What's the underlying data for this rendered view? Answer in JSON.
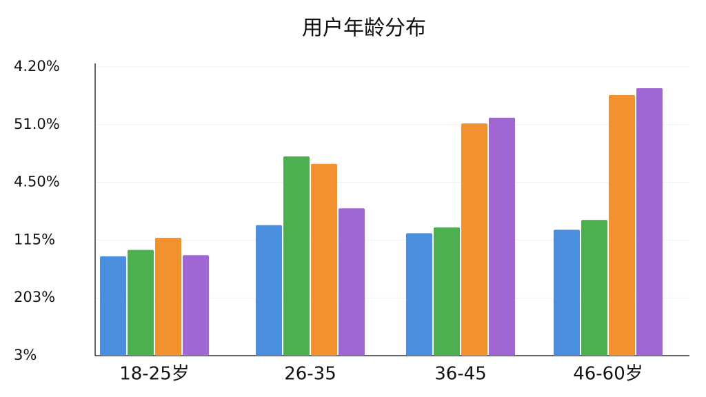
{
  "chart_data": {
    "type": "bar",
    "title": "用户年龄分布",
    "categories": [
      "18-25岁",
      "26-35",
      "36-45",
      "46-60岁"
    ],
    "series": [
      {
        "color": "#4a8ee0",
        "values": [
          1.72,
          2.26,
          2.12,
          2.18
        ]
      },
      {
        "color": "#4caf50",
        "values": [
          1.83,
          3.45,
          2.22,
          2.35
        ]
      },
      {
        "color": "#f2912e",
        "values": [
          2.04,
          3.32,
          4.02,
          4.51
        ]
      },
      {
        "color": "#a066d3",
        "values": [
          1.74,
          2.55,
          4.12,
          4.63
        ]
      }
    ],
    "ylim": [
      0,
      5
    ],
    "yticks": [
      {
        "value": 0,
        "label": "3%"
      },
      {
        "value": 1,
        "label": "203%"
      },
      {
        "value": 2,
        "label": "115%"
      },
      {
        "value": 3,
        "label": "4.50%"
      },
      {
        "value": 4,
        "label": "51.0%"
      },
      {
        "value": 5,
        "label": "4.20%"
      }
    ],
    "grid": true
  }
}
